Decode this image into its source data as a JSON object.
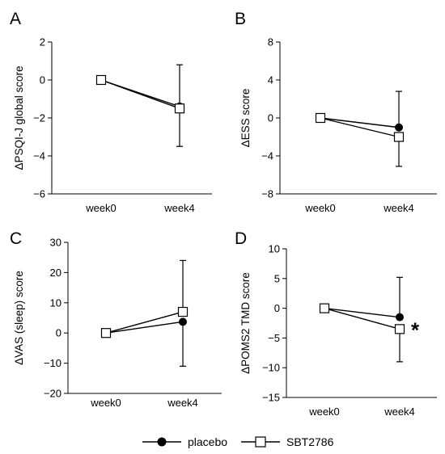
{
  "chart_data": [
    {
      "type": "line",
      "panel_label": "A",
      "categories": [
        "week0",
        "week4"
      ],
      "ylabel": "ΔPSQI-J global score",
      "ylim": [
        -6,
        2
      ],
      "yticks": [
        2,
        0,
        -2,
        -4,
        -6
      ],
      "ytick_labels": [
        "2",
        "0",
        "−2",
        "−4",
        "−6"
      ],
      "series": [
        {
          "name": "placebo",
          "values": [
            0,
            -1.4
          ],
          "error_high": [
            0,
            0.8
          ],
          "error_low": [
            0,
            null
          ]
        },
        {
          "name": "SBT2786",
          "values": [
            0,
            -1.5
          ],
          "error_high": [
            0,
            null
          ],
          "error_low": [
            0,
            -3.5
          ]
        }
      ],
      "annotation": ""
    },
    {
      "type": "line",
      "panel_label": "B",
      "categories": [
        "week0",
        "week4"
      ],
      "ylabel": "ΔESS score",
      "ylim": [
        -8,
        8
      ],
      "yticks": [
        8,
        4,
        0,
        -4,
        -8
      ],
      "ytick_labels": [
        "8",
        "4",
        "0",
        "−4",
        "−8"
      ],
      "series": [
        {
          "name": "placebo",
          "values": [
            0,
            -1
          ],
          "error_high": [
            0,
            2.8
          ],
          "error_low": [
            0,
            null
          ]
        },
        {
          "name": "SBT2786",
          "values": [
            0,
            -2
          ],
          "error_high": [
            0,
            null
          ],
          "error_low": [
            0,
            -5.1
          ]
        }
      ],
      "annotation": ""
    },
    {
      "type": "line",
      "panel_label": "C",
      "categories": [
        "week0",
        "week4"
      ],
      "ylabel": "ΔVAS (sleep) score",
      "ylim": [
        -20,
        30
      ],
      "yticks": [
        30,
        20,
        10,
        0,
        -10,
        -20
      ],
      "ytick_labels": [
        "30",
        "20",
        "10",
        "0",
        "−10",
        "−20"
      ],
      "series": [
        {
          "name": "placebo",
          "values": [
            0,
            3.7
          ],
          "error_high": [
            0,
            null
          ],
          "error_low": [
            0,
            -11
          ]
        },
        {
          "name": "SBT2786",
          "values": [
            0,
            7
          ],
          "error_high": [
            0,
            24
          ],
          "error_low": [
            0,
            null
          ]
        }
      ],
      "annotation": ""
    },
    {
      "type": "line",
      "panel_label": "D",
      "categories": [
        "week0",
        "week4"
      ],
      "ylabel": "ΔPOMS2 TMD score",
      "ylim": [
        -15,
        10
      ],
      "yticks": [
        10,
        5,
        0,
        -5,
        -10,
        -15
      ],
      "ytick_labels": [
        "10",
        "5",
        "0",
        "−5",
        "−10",
        "−15"
      ],
      "series": [
        {
          "name": "placebo",
          "values": [
            0,
            -1.5
          ],
          "error_high": [
            0,
            5.2
          ],
          "error_low": [
            0,
            null
          ]
        },
        {
          "name": "SBT2786",
          "values": [
            0,
            -3.5
          ],
          "error_high": [
            0,
            null
          ],
          "error_low": [
            0,
            -9
          ]
        }
      ],
      "annotation": "*"
    }
  ],
  "legend": {
    "items": [
      {
        "name": "placebo",
        "marker": "filled-circle"
      },
      {
        "name": "SBT2786",
        "marker": "open-square"
      }
    ],
    "placement": "bottom-center"
  }
}
